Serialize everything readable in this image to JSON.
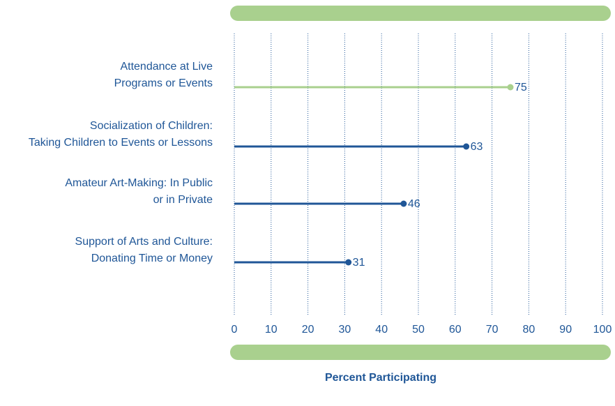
{
  "chart_data": {
    "type": "lollipop",
    "categories": [
      [
        "Attendance at Live",
        "Programs or Events"
      ],
      [
        "Socialization of Children:",
        "Taking Children to Events or Lessons"
      ],
      [
        "Amateur Art-Making: In Public",
        "or in Private"
      ],
      [
        "Support of Arts and Culture:",
        "Donating Time or Money"
      ]
    ],
    "values": [
      75,
      63,
      46,
      31
    ],
    "colors": [
      "#a9d08e",
      "#1f5697",
      "#1f5697",
      "#1f5697"
    ],
    "xlabel": "Percent Participating",
    "xlim": [
      0,
      100
    ],
    "xticks": [
      0,
      10,
      20,
      30,
      40,
      50,
      60,
      70,
      80,
      90,
      100
    ],
    "grid": true
  }
}
